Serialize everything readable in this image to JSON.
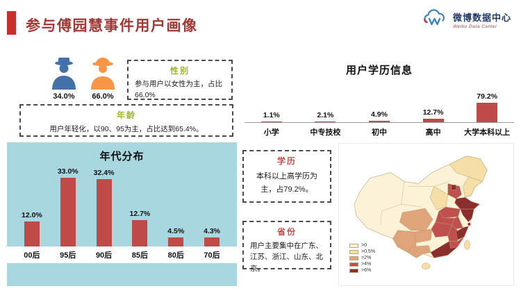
{
  "header": {
    "title": "参与傅园慧事件用户画像",
    "logo_title": "微博数据中心",
    "logo_subtitle": "Weibo Data Center"
  },
  "gender": {
    "box_label": "性别",
    "male_pct": "34.0%",
    "female_pct": "66.0%",
    "desc": "参与用户以女性为主，占比66.0%"
  },
  "age": {
    "box_label": "年龄",
    "desc": "用户年轻化，以90、95为主，占比达到65.4%。"
  },
  "education": {
    "box_label": "学历",
    "desc": "本科以上高学历为主，占79.2%。"
  },
  "province": {
    "box_label": "省份",
    "desc": "用户主要集中在广东、江苏、浙江、山东、北京。"
  },
  "chart_data": [
    {
      "type": "bar",
      "title": "用户学历信息",
      "categories": [
        "小学",
        "中专技校",
        "初中",
        "高中",
        "大学本科以上"
      ],
      "values": [
        1.1,
        2.1,
        4.9,
        12.7,
        79.2
      ],
      "labels": [
        "1.1%",
        "2.1%",
        "4.9%",
        "12.7%",
        "79.2%"
      ],
      "bar_color": "#BE4B48",
      "xlabel": "",
      "ylabel": "",
      "ylim": [
        0,
        100
      ],
      "grid": false,
      "legend": "none"
    },
    {
      "type": "bar",
      "title": "年代分布",
      "categories": [
        "00后",
        "95后",
        "90后",
        "85后",
        "80后",
        "70后"
      ],
      "values": [
        12.0,
        33.0,
        32.4,
        12.7,
        4.5,
        4.3
      ],
      "labels": [
        "12.0%",
        "33.0%",
        "32.4%",
        "12.7%",
        "4.5%",
        "4.3%"
      ],
      "bar_color": "#BE4B48",
      "xlabel": "",
      "ylabel": "",
      "ylim": [
        0,
        35
      ],
      "grid": false,
      "legend": "none"
    }
  ],
  "map": {
    "type": "choropleth-china",
    "legend": [
      ">0",
      ">0.5%",
      ">2%",
      ">4%",
      ">6%"
    ],
    "legend_colors": [
      "#FBF2D8",
      "#F5DFA6",
      "#DFA47A",
      "#C0504D",
      "#8C2E2E"
    ]
  },
  "colors": {
    "accent_red": "#C9302C",
    "title_red": "#A23835",
    "bar_red": "#BE4B48",
    "panel_blue": "#A9D7DF",
    "olive_label": "#A3B42B",
    "red_label": "#C0504D",
    "male_blue": "#4472A8",
    "female_orange": "#F79646"
  }
}
